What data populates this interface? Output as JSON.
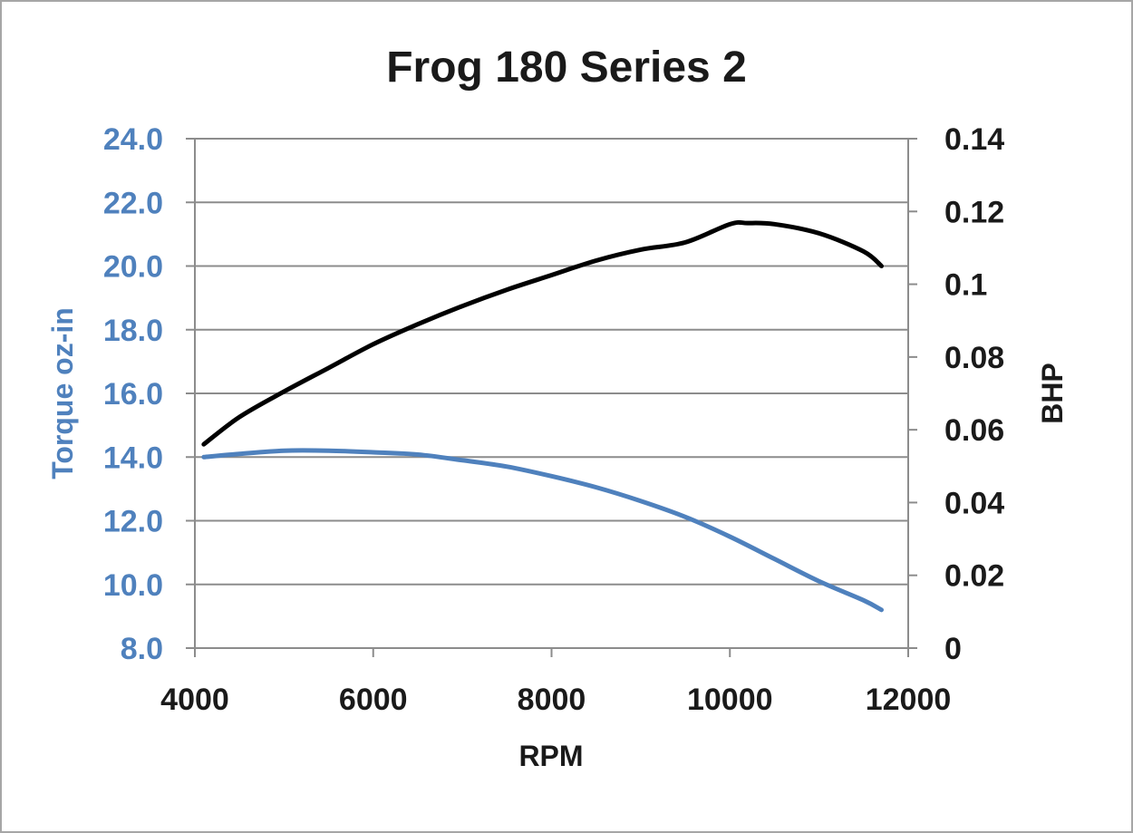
{
  "colors": {
    "torque": "#4f81bd",
    "bhp": "#000000",
    "grid": "#8c8c8c",
    "frame": "#a6a6a6"
  },
  "chart_data": {
    "type": "line",
    "title": "Frog 180 Series 2",
    "xlabel": "RPM",
    "ylabel_left": "Torque oz-in",
    "ylabel_right": "BHP",
    "xlim": [
      4000,
      12000
    ],
    "ylim_left": [
      8.0,
      24.0
    ],
    "ylim_right": [
      0,
      0.14
    ],
    "x_ticks": [
      "4000",
      "6000",
      "8000",
      "10000",
      "12000"
    ],
    "y_left_ticks": [
      "8.0",
      "10.0",
      "12.0",
      "14.0",
      "16.0",
      "18.0",
      "20.0",
      "22.0",
      "24.0"
    ],
    "y_right_ticks": [
      "0",
      "0.02",
      "0.04",
      "0.06",
      "0.08",
      "0.1",
      "0.12",
      "0.14"
    ],
    "grid": true,
    "series": [
      {
        "axis": "left",
        "color": "#4f81bd",
        "x": [
          4100,
          4500,
          5000,
          5500,
          6000,
          6500,
          7000,
          7500,
          8000,
          8500,
          9000,
          9500,
          10000,
          10500,
          11000,
          11500,
          11700
        ],
        "values": [
          14.0,
          14.1,
          14.2,
          14.2,
          14.15,
          14.08,
          13.9,
          13.7,
          13.4,
          13.05,
          12.62,
          12.12,
          11.5,
          10.8,
          10.1,
          9.5,
          9.2
        ]
      },
      {
        "axis": "right",
        "color": "#000000",
        "x": [
          4100,
          4500,
          5000,
          5500,
          6000,
          6500,
          7000,
          7500,
          8000,
          8500,
          9000,
          9500,
          10000,
          10200,
          10500,
          11000,
          11500,
          11700
        ],
        "values": [
          0.056,
          0.0635,
          0.0705,
          0.077,
          0.0835,
          0.089,
          0.094,
          0.0985,
          0.1025,
          0.1065,
          0.1095,
          0.1115,
          0.1165,
          0.1168,
          0.1165,
          0.114,
          0.109,
          0.105
        ]
      }
    ]
  }
}
